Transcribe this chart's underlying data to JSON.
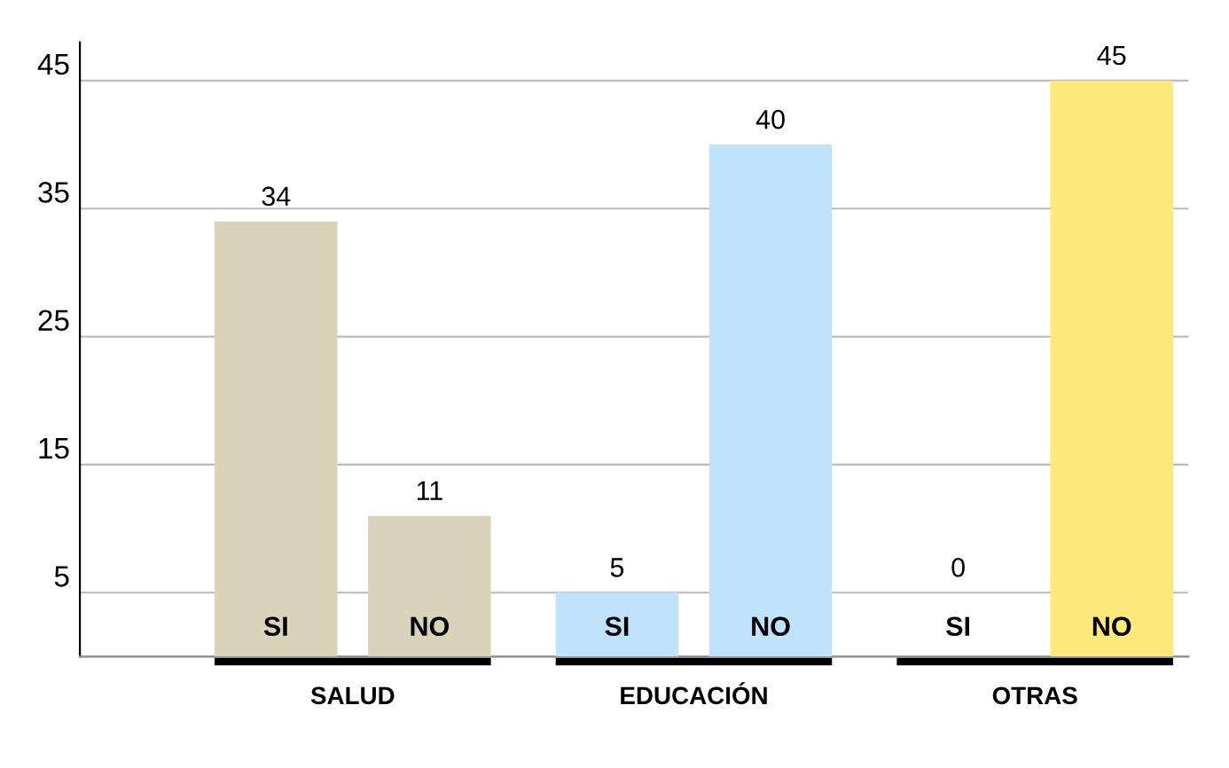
{
  "chart_data": {
    "type": "bar",
    "categories": [
      "SALUD",
      "EDUCACIÓN",
      "OTRAS"
    ],
    "series": [
      {
        "name": "SI",
        "values": [
          34,
          5,
          0
        ],
        "colors": [
          "#d9d4b9",
          "#bfe3fb",
          null
        ]
      },
      {
        "name": "NO",
        "values": [
          11,
          40,
          45
        ],
        "colors": [
          "#d9d4b9",
          "#bfe3fb",
          "#fde97a"
        ]
      }
    ],
    "ylim": [
      0,
      48
    ],
    "yticks": [
      5,
      15,
      25,
      35,
      45
    ],
    "grid": "y",
    "data_labels": true,
    "legend": false
  }
}
